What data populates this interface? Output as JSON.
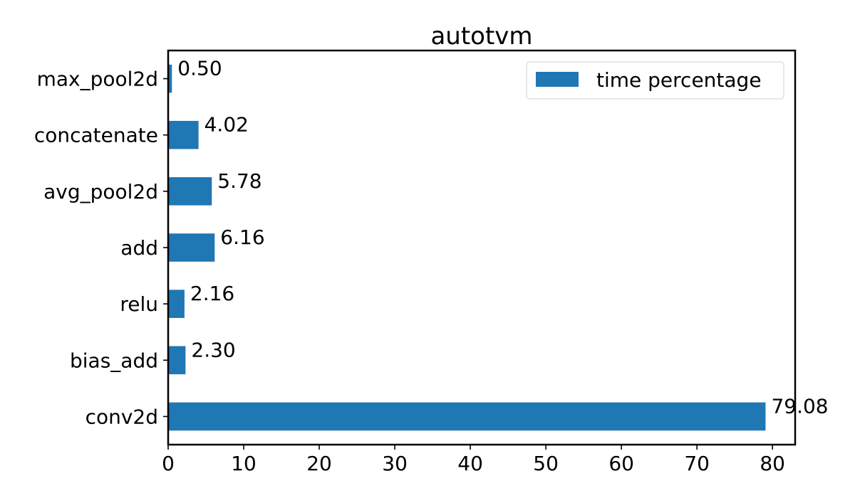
{
  "chart_data": {
    "type": "bar",
    "orientation": "horizontal",
    "title": "autotvm",
    "xlabel": "",
    "ylabel": "",
    "categories": [
      "conv2d",
      "bias_add",
      "relu",
      "add",
      "avg_pool2d",
      "concatenate",
      "max_pool2d"
    ],
    "series": [
      {
        "name": "time percentage",
        "values": [
          79.08,
          2.3,
          2.16,
          6.16,
          5.78,
          4.02,
          0.5
        ],
        "labels": [
          "79.08",
          "2.30",
          "2.16",
          "6.16",
          "5.78",
          "4.02",
          "0.50"
        ],
        "color": "#1f77b4"
      }
    ],
    "xlim": [
      0,
      83
    ],
    "xticks": [
      0,
      10,
      20,
      30,
      40,
      50,
      60,
      70,
      80
    ],
    "grid": false,
    "legend_position": "top-right"
  }
}
